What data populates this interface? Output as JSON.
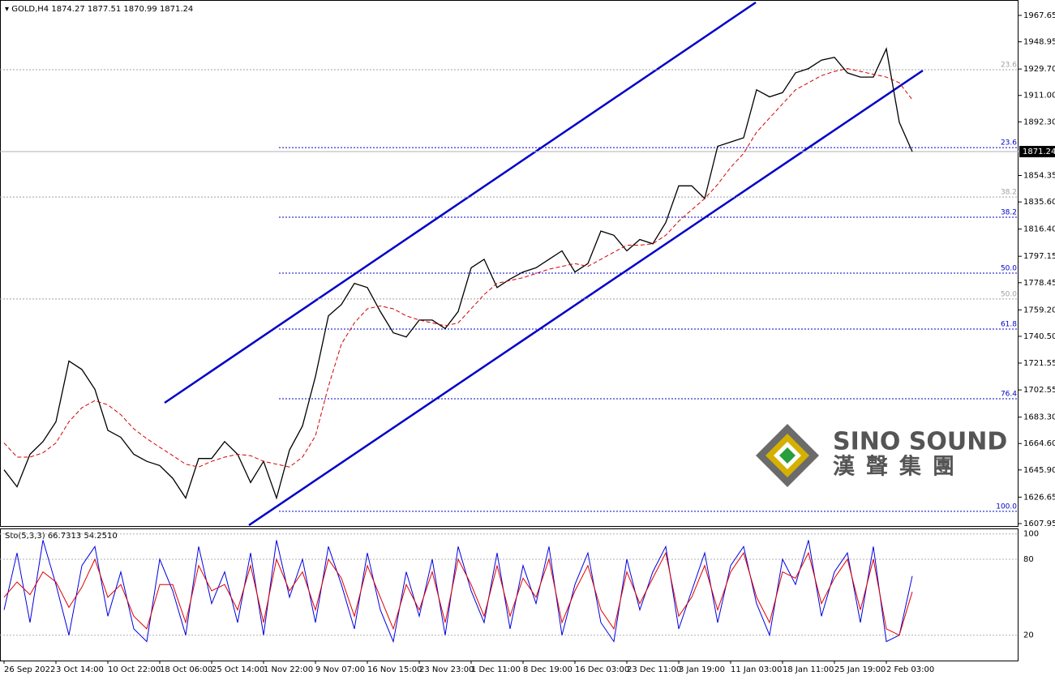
{
  "chart_data": {
    "type": "line",
    "title": "GOLD,H4",
    "subtitle": "1874.27 1877.51 1870.99 1871.24",
    "categories": [
      "26 Sep 2022",
      null,
      null,
      null,
      "3 Oct 14:00",
      null,
      null,
      null,
      "10 Oct 22:00",
      null,
      null,
      null,
      "18 Oct 06:00",
      null,
      null,
      null,
      "25 Oct 14:00",
      null,
      null,
      null,
      "1 Nov 22:00",
      null,
      null,
      null,
      "9 Nov 07:00",
      null,
      null,
      null,
      "16 Nov 15:00",
      null,
      null,
      null,
      "23 Nov 23:00",
      null,
      null,
      null,
      "1 Dec 11:00",
      null,
      null,
      null,
      "8 Dec 19:00",
      null,
      null,
      null,
      "16 Dec 03:00",
      null,
      null,
      null,
      "23 Dec 11:00",
      null,
      null,
      null,
      "3 Jan 19:00",
      null,
      null,
      null,
      "11 Jan 03:00",
      null,
      null,
      null,
      "18 Jan 11:00",
      null,
      null,
      null,
      "25 Jan 19:00",
      null,
      null,
      null,
      "2 Feb 03:00",
      null,
      null
    ],
    "series": [
      {
        "color": "#000000",
        "values": [
          1646,
          1634,
          1657,
          1666,
          1680,
          1723,
          1717,
          1703,
          1674,
          1669,
          1657,
          1652,
          1649,
          1640,
          1626,
          1654,
          1654,
          1666,
          1657,
          1637,
          1652,
          1626,
          1660,
          1677,
          1712,
          1755,
          1763,
          1778,
          1775,
          1758,
          1743,
          1740,
          1752,
          1752,
          1746,
          1758,
          1789,
          1795,
          1775,
          1781,
          1786,
          1789,
          1795,
          1801,
          1786,
          1792,
          1815,
          1812,
          1801,
          1809,
          1806,
          1821,
          1847,
          1847,
          1838,
          1875,
          1878,
          1881,
          1915,
          1910,
          1913,
          1927,
          1930,
          1936,
          1938,
          1927,
          1924,
          1924,
          1944,
          1892,
          1871.24
        ]
      },
      {
        "color": "#d40000",
        "dashed": true,
        "values": [
          1665,
          1655,
          1655,
          1658,
          1665,
          1680,
          1690,
          1695,
          1692,
          1685,
          1675,
          1668,
          1662,
          1656,
          1650,
          1648,
          1652,
          1655,
          1657,
          1656,
          1652,
          1650,
          1648,
          1655,
          1670,
          1705,
          1735,
          1750,
          1760,
          1762,
          1760,
          1755,
          1752,
          1750,
          1748,
          1750,
          1760,
          1770,
          1778,
          1780,
          1782,
          1785,
          1788,
          1790,
          1792,
          1790,
          1795,
          1800,
          1805,
          1805,
          1806,
          1812,
          1822,
          1830,
          1838,
          1848,
          1860,
          1870,
          1885,
          1895,
          1905,
          1915,
          1920,
          1925,
          1928,
          1930,
          1928,
          1926,
          1924,
          1920,
          1908
        ]
      }
    ],
    "ylim": [
      1605.65,
      1978.55
    ],
    "yticks": [
      1967.65,
      1948.95,
      {
        "value": 1929.7,
        "label": "1929.70"
      },
      {
        "value": 1911,
        "label": "1911.00"
      },
      {
        "value": 1892.3,
        "label": "1892.30"
      },
      1854.35,
      {
        "value": 1835.6,
        "label": "1835.60"
      },
      {
        "value": 1816.4,
        "label": "1816.40"
      },
      1797.15,
      1778.45,
      {
        "value": 1759.2,
        "label": "1759.20"
      },
      {
        "value": 1740.5,
        "label": "1740.50"
      },
      1721.55,
      1702.55,
      {
        "value": 1683.3,
        "label": "1683.30"
      },
      {
        "value": 1664.6,
        "label": "1664.60"
      },
      {
        "value": 1645.9,
        "label": "1645.90"
      },
      1626.65,
      1607.95
    ],
    "last_price": 1871.24,
    "fib_levels": [
      {
        "label": "23.6",
        "price": 1874.1,
        "color": "#0000c8",
        "partial": true
      },
      {
        "label": "38.2",
        "price": 1824.8,
        "color": "#0000c8",
        "partial": true
      },
      {
        "label": "50.0",
        "price": 1785.2,
        "color": "#0000c8",
        "partial": true
      },
      {
        "label": "61.8",
        "price": 1745.6,
        "color": "#0000c8",
        "partial": true
      },
      {
        "label": "76.4",
        "price": 1696.3,
        "color": "#0000c8",
        "partial": true
      },
      {
        "label": "100.0",
        "price": 1616.6,
        "color": "#0000c8",
        "partial": true
      },
      {
        "label": "23.6",
        "price": 1929.2,
        "color": "#a0a0a0",
        "partial": false
      },
      {
        "label": "38.2",
        "price": 1839.1,
        "color": "#a0a0a0",
        "partial": false
      },
      {
        "label": "50.0",
        "price": 1766.9,
        "color": "#a0a0a0",
        "partial": false
      }
    ],
    "stochastic": {
      "title": "Sto(5,3,3) 66.7313 54.2510",
      "ylim": [
        -9.6,
        104.3
      ],
      "yticks": [
        20,
        80,
        100
      ],
      "series": [
        {
          "color": "#0000e0",
          "values": [
            40,
            85,
            30,
            95,
            60,
            20,
            75,
            90,
            35,
            70,
            25,
            15,
            80,
            55,
            20,
            90,
            45,
            70,
            30,
            85,
            20,
            95,
            50,
            80,
            30,
            90,
            60,
            25,
            85,
            40,
            15,
            70,
            35,
            80,
            20,
            90,
            55,
            30,
            85,
            25,
            75,
            45,
            90,
            20,
            60,
            85,
            30,
            15,
            80,
            40,
            70,
            90,
            25,
            55,
            85,
            30,
            75,
            90,
            45,
            20,
            80,
            60,
            95,
            35,
            70,
            85,
            30,
            90,
            15,
            20,
            66.7313
          ]
        },
        {
          "color": "#e00000",
          "values": [
            50,
            62,
            52,
            70,
            62,
            42,
            58,
            80,
            50,
            60,
            35,
            25,
            60,
            60,
            30,
            75,
            55,
            60,
            40,
            75,
            30,
            80,
            55,
            70,
            40,
            80,
            65,
            35,
            75,
            50,
            25,
            60,
            40,
            70,
            30,
            80,
            60,
            35,
            75,
            35,
            65,
            50,
            80,
            30,
            55,
            75,
            40,
            25,
            70,
            45,
            65,
            85,
            35,
            50,
            75,
            40,
            70,
            85,
            50,
            30,
            70,
            65,
            85,
            45,
            65,
            80,
            40,
            80,
            25,
            20,
            54.251
          ]
        }
      ]
    },
    "brand": {
      "name": "SINO SOUND",
      "name_cn": "漢聲集團"
    }
  }
}
